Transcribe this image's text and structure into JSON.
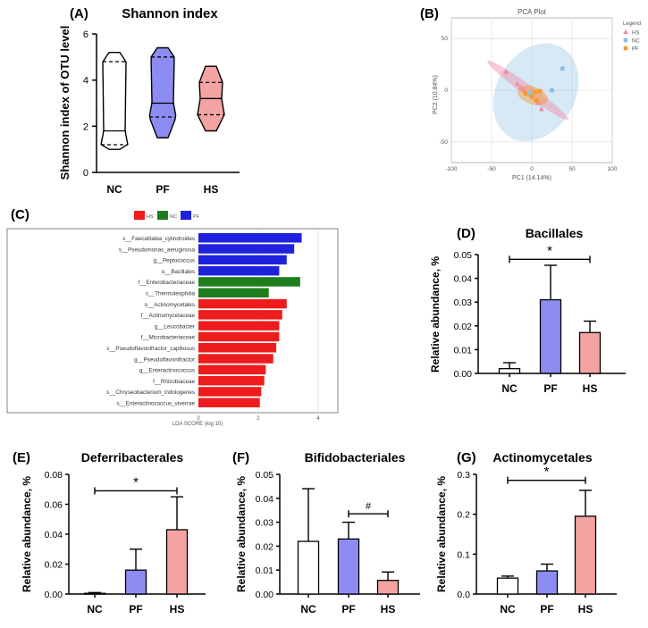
{
  "colors": {
    "NC": "#ffffff",
    "PF": "#8c8cf2",
    "HS": "#f4a3a3",
    "lda_HS": "#ee1c1c",
    "lda_NC": "#1e7e1e",
    "lda_PF": "#1e22dd",
    "pca_HS": "#f08aa8",
    "pca_NC": "#8fbfe6",
    "pca_PF": "#f39a2e"
  },
  "chart_data": [
    {
      "panel": "(A)",
      "type": "violin",
      "title": "Shannon index",
      "ylabel": "Shannon index of OTU level",
      "categories": [
        "NC",
        "PF",
        "HS"
      ],
      "ylim": [
        0,
        6
      ],
      "yticks": [
        "0",
        "2",
        "4",
        "6"
      ],
      "series": [
        {
          "name": "NC",
          "min": 1.0,
          "q1": 1.2,
          "median": 1.8,
          "q3": 4.8,
          "max": 5.2
        },
        {
          "name": "PF",
          "min": 1.5,
          "q1": 2.4,
          "median": 3.0,
          "q3": 5.0,
          "max": 5.4
        },
        {
          "name": "HS",
          "min": 1.8,
          "q1": 2.5,
          "median": 3.2,
          "q3": 3.9,
          "max": 4.6
        }
      ]
    },
    {
      "panel": "(B)",
      "type": "scatter",
      "title": "PCA Plot",
      "xlabel": "PC1 (14.14%)",
      "ylabel": "PC2 (10.84%)",
      "xlim": [
        -100,
        100
      ],
      "ylim": [
        -70,
        70
      ],
      "xticks": [
        "-100",
        "-50",
        "0",
        "50",
        "100"
      ],
      "yticks": [
        "-50",
        "0",
        "50"
      ],
      "legend_title": "Legend",
      "series": [
        {
          "name": "HS",
          "points": [
            [
              -32,
              18
            ],
            [
              -18,
              6
            ],
            [
              -14,
              3
            ],
            [
              -10,
              1
            ],
            [
              8,
              -12
            ],
            [
              12,
              -18
            ]
          ]
        },
        {
          "name": "NC",
          "points": [
            [
              38,
              21
            ],
            [
              25,
              0
            ],
            [
              -2,
              -3
            ]
          ]
        },
        {
          "name": "PF",
          "points": [
            [
              -8,
              -3
            ],
            [
              0,
              -6
            ],
            [
              4,
              -2
            ],
            [
              10,
              -1
            ],
            [
              6,
              -10
            ]
          ]
        }
      ]
    },
    {
      "panel": "(C)",
      "type": "bar",
      "orientation": "horizontal",
      "xlabel": "LDA SCORE (log 10)",
      "xlim": [
        0,
        4.3
      ],
      "xticks": [
        "0",
        "2",
        "4"
      ],
      "legend": [
        "HS",
        "NC",
        "PF"
      ],
      "categories": [
        "s__Faecalitalea_cylindroides",
        "s__Pseudomonas_aeruginosa",
        "g__Peptococcus",
        "o__Bacillales",
        "f__Enterobacteriaceae",
        "c__Thermoleophilia",
        "o__Actinomycetales",
        "f__Actinomycetaceae",
        "g__Leucobacter",
        "f__Microbacteriaceae",
        "s__Pseudoflavonifractor_capillosus",
        "g__Pseudoflavonifractor",
        "g__Enteractinococcus",
        "f__Rhizobiaceae",
        "s__Chryseobacterium_indologenes",
        "s__Enteractinococcus_viverrae"
      ],
      "values": [
        3.45,
        3.2,
        2.95,
        2.7,
        3.4,
        2.35,
        2.95,
        2.8,
        2.7,
        2.7,
        2.6,
        2.5,
        2.25,
        2.2,
        2.1,
        2.05
      ],
      "groups": [
        "PF",
        "PF",
        "PF",
        "PF",
        "NC",
        "NC",
        "HS",
        "HS",
        "HS",
        "HS",
        "HS",
        "HS",
        "HS",
        "HS",
        "HS",
        "HS"
      ]
    },
    {
      "panel": "(D)",
      "type": "bar",
      "title": "Bacillales",
      "ylabel": "Relative abundance, %",
      "categories": [
        "NC",
        "PF",
        "HS"
      ],
      "values": [
        0.002,
        0.031,
        0.0172
      ],
      "errors": [
        0.0025,
        0.0145,
        0.0048
      ],
      "ylim": [
        0,
        0.05
      ],
      "yticks": [
        "0.00",
        "0.01",
        "0.02",
        "0.03",
        "0.04",
        "0.05"
      ],
      "annotations": [
        {
          "text": "*",
          "from": "NC",
          "to": "HS",
          "y": 0.048
        }
      ]
    },
    {
      "panel": "(E)",
      "type": "bar",
      "title": "Deferribacterales",
      "ylabel": "Relative abundance, %",
      "categories": [
        "NC",
        "PF",
        "HS"
      ],
      "values": [
        0.0005,
        0.016,
        0.043
      ],
      "errors": [
        0.0005,
        0.014,
        0.022
      ],
      "ylim": [
        0,
        0.08
      ],
      "yticks": [
        "0.00",
        "0.02",
        "0.04",
        "0.06",
        "0.08"
      ],
      "annotations": [
        {
          "text": "*",
          "from": "NC",
          "to": "HS",
          "y": 0.069
        }
      ]
    },
    {
      "panel": "(F)",
      "type": "bar",
      "title": "Bifidobacteriales",
      "ylabel": "Relative abundance, %",
      "categories": [
        "NC",
        "PF",
        "HS"
      ],
      "values": [
        0.022,
        0.023,
        0.0057
      ],
      "errors": [
        0.022,
        0.007,
        0.0035
      ],
      "ylim": [
        0,
        0.05
      ],
      "yticks": [
        "0.00",
        "0.01",
        "0.02",
        "0.03",
        "0.04",
        "0.05"
      ],
      "annotations": [
        {
          "text": "#",
          "from": "PF",
          "to": "HS",
          "y": 0.0335
        }
      ]
    },
    {
      "panel": "(G)",
      "type": "bar",
      "title": "Actinomycetales",
      "ylabel": "Relative abundance, %",
      "categories": [
        "NC",
        "PF",
        "HS"
      ],
      "values": [
        0.04,
        0.058,
        0.195
      ],
      "errors": [
        0.005,
        0.017,
        0.065
      ],
      "ylim": [
        0,
        0.3
      ],
      "yticks": [
        "0.0",
        "0.1",
        "0.2",
        "0.3"
      ],
      "annotations": [
        {
          "text": "*",
          "from": "NC",
          "to": "HS",
          "y": 0.285
        }
      ]
    }
  ]
}
